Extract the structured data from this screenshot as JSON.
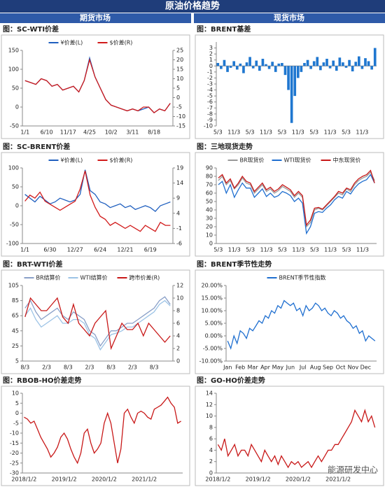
{
  "header": {
    "title": "原油价格趋势",
    "left": "期货市场",
    "right": "现货市场"
  },
  "watermark": "能源研发中心",
  "chart_data": [
    {
      "type": "line",
      "title": "图：SC-WTI价差",
      "categories": [
        "1/1",
        null,
        null,
        null,
        "6/10",
        null,
        null,
        null,
        "11/17",
        null,
        null,
        null,
        "4/25",
        null,
        null,
        null,
        "10/2",
        null,
        null,
        null,
        "3/11",
        null,
        null,
        null,
        "8/18",
        null,
        null,
        null
      ],
      "series": [
        {
          "name": "¥价差(L)",
          "color": "#1f5fbf",
          "values": [
            70,
            65,
            60,
            75,
            70,
            55,
            60,
            45,
            50,
            55,
            40,
            70,
            130,
            80,
            50,
            20,
            5,
            0,
            -5,
            -10,
            -5,
            -10,
            -5,
            0,
            -15,
            -5,
            -10,
            10
          ]
        },
        {
          "name": "$价差(R)",
          "color": "#d11a1a",
          "axis": "y2",
          "values": [
            9,
            8,
            7,
            10,
            9,
            6,
            7,
            4,
            5,
            6,
            3,
            9,
            20,
            11,
            5,
            -1,
            -4,
            -5,
            -6,
            -7,
            -6,
            -7,
            -5,
            -5,
            -8,
            -6,
            -7,
            -3
          ]
        }
      ],
      "ylim": [
        -50,
        150
      ],
      "yticks": [
        -50,
        0,
        50,
        100,
        150
      ],
      "y2lim": [
        -15,
        25
      ],
      "y2ticks": [
        -15,
        -10,
        -5,
        0,
        5,
        10,
        15,
        20,
        25
      ]
    },
    {
      "type": "bar",
      "title": "图：BRENT基差",
      "color": "#1f77d0",
      "categories": [
        "5/3",
        null,
        null,
        null,
        null,
        "11/3",
        null,
        null,
        null,
        null,
        "5/3",
        null,
        null,
        null,
        null,
        "11/3",
        null,
        null,
        null,
        null,
        "5/3",
        null,
        null,
        null,
        null,
        "11/3",
        null,
        null,
        null,
        null,
        "5/3",
        null,
        null,
        null,
        null,
        "11/3",
        null,
        null,
        null,
        null,
        "5/3",
        null,
        null,
        null,
        null,
        "11/3",
        null,
        null,
        null,
        null
      ],
      "values": [
        0.5,
        -0.5,
        1,
        -1,
        -0.3,
        0.8,
        -0.6,
        0.4,
        -1.2,
        0.6,
        1.5,
        -0.4,
        0.9,
        -0.8,
        1.2,
        0.3,
        -0.5,
        0.7,
        -1,
        0.4,
        0.5,
        -1.5,
        -4,
        -9.5,
        -5,
        -2,
        -1,
        0.5,
        1,
        -0.5,
        0.8,
        1.5,
        -0.7,
        0.6,
        1.2,
        -0.4,
        0.9,
        -0.8,
        1.4,
        0.6,
        -0.3,
        1,
        -0.9,
        0.7,
        1.6,
        -0.5,
        1.3,
        0.8,
        -0.6,
        3
      ],
      "ylim": [
        -10,
        4
      ],
      "yticks": [
        -10,
        -9,
        -8,
        -7,
        -6,
        -5,
        -4,
        -3,
        -2,
        -1,
        0,
        1,
        2,
        3
      ]
    },
    {
      "type": "line",
      "title": "图：SC-BRENT价差",
      "categories": [
        "1/1",
        null,
        null,
        null,
        null,
        "6/30",
        null,
        null,
        null,
        null,
        "12/27",
        null,
        null,
        null,
        null,
        "6/24",
        null,
        null,
        null,
        null,
        "12/21",
        null,
        null,
        null,
        null,
        "6/19",
        null,
        null,
        null,
        null
      ],
      "series": [
        {
          "name": "¥价差(L)",
          "color": "#1f5fbf",
          "values": [
            30,
            20,
            10,
            25,
            15,
            5,
            10,
            20,
            15,
            10,
            15,
            30,
            95,
            40,
            30,
            10,
            5,
            -5,
            0,
            5,
            -5,
            0,
            -10,
            -5,
            0,
            -5,
            -15,
            0,
            5,
            10
          ]
        },
        {
          "name": "$价差(R)",
          "color": "#d11a1a",
          "axis": "y2",
          "values": [
            8,
            10,
            9,
            11,
            8,
            7,
            6,
            5,
            6,
            7,
            8,
            12,
            18,
            10,
            6,
            3,
            2,
            0,
            1,
            0,
            -1,
            0,
            -1,
            -2,
            0,
            -1,
            -2,
            1,
            0,
            0
          ]
        }
      ],
      "ylim": [
        -100,
        100
      ],
      "yticks": [
        -100,
        -50,
        0,
        50,
        100
      ],
      "y2lim": [
        -6,
        19
      ],
      "y2ticks": [
        -6,
        -1,
        4,
        9,
        14,
        19
      ]
    },
    {
      "type": "line",
      "title": "图：三地现货走势",
      "categories": [
        "5/3",
        null,
        null,
        null,
        "11/3",
        null,
        null,
        null,
        "5/3",
        null,
        null,
        null,
        "11/3",
        null,
        null,
        null,
        "5/3",
        null,
        null,
        null,
        "11/3",
        null,
        null,
        null,
        "5/3",
        null,
        null,
        null,
        "11/3",
        null,
        null,
        null,
        "5/3",
        null,
        null,
        null,
        "11/3",
        null,
        null,
        null
      ],
      "series": [
        {
          "name": "BR现货价",
          "color": "#999999",
          "values": [
            75,
            80,
            70,
            75,
            65,
            70,
            78,
            72,
            70,
            60,
            65,
            70,
            62,
            65,
            60,
            63,
            68,
            65,
            62,
            55,
            60,
            55,
            20,
            25,
            40,
            42,
            40,
            45,
            50,
            55,
            60,
            58,
            65,
            62,
            70,
            75,
            78,
            80,
            85,
            75
          ]
        },
        {
          "name": "WTI现货价",
          "color": "#1f6fd0",
          "values": [
            70,
            74,
            60,
            70,
            55,
            64,
            72,
            66,
            66,
            55,
            60,
            65,
            56,
            60,
            55,
            57,
            62,
            60,
            57,
            50,
            54,
            48,
            12,
            20,
            36,
            38,
            37,
            42,
            46,
            52,
            56,
            54,
            62,
            59,
            66,
            71,
            74,
            76,
            82,
            72
          ]
        },
        {
          "name": "中东现货价",
          "color": "#c81818",
          "values": [
            78,
            82,
            72,
            77,
            66,
            72,
            80,
            74,
            72,
            62,
            67,
            72,
            64,
            67,
            62,
            65,
            70,
            67,
            64,
            57,
            62,
            57,
            22,
            28,
            42,
            43,
            41,
            46,
            51,
            56,
            62,
            60,
            66,
            64,
            72,
            77,
            80,
            82,
            87,
            72
          ]
        }
      ],
      "ylim": [
        0,
        90
      ],
      "yticks": [
        0,
        10,
        20,
        30,
        40,
        50,
        60,
        70,
        80,
        90
      ]
    },
    {
      "type": "line",
      "title": "图：BRT-WTI价差",
      "categories": [
        "8/3",
        null,
        null,
        null,
        "2/3",
        null,
        null,
        null,
        "8/3",
        null,
        null,
        null,
        "2/3",
        null,
        null,
        null,
        "8/3",
        null,
        null,
        null,
        "2/3",
        null,
        null,
        null,
        "8/3",
        null,
        null,
        null
      ],
      "series": [
        {
          "name": "BR结算价",
          "color": "#8aa0c8",
          "values": [
            75,
            85,
            70,
            60,
            65,
            70,
            75,
            65,
            60,
            70,
            65,
            60,
            45,
            40,
            25,
            35,
            45,
            45,
            50,
            55,
            55,
            60,
            65,
            70,
            75,
            85,
            90,
            80
          ]
        },
        {
          "name": "WTI结算价",
          "color": "#9cc3e6",
          "values": [
            65,
            75,
            60,
            50,
            55,
            60,
            65,
            55,
            55,
            60,
            60,
            55,
            40,
            35,
            20,
            30,
            40,
            42,
            45,
            50,
            50,
            55,
            60,
            65,
            70,
            80,
            85,
            78
          ]
        },
        {
          "name": "跨市价差(R)",
          "color": "#c81818",
          "axis": "y2",
          "values": [
            7,
            10,
            9,
            8,
            8,
            9,
            10,
            7,
            6,
            9,
            6,
            5,
            4,
            6,
            7,
            8,
            2,
            4,
            6,
            5,
            5,
            6,
            4,
            6,
            5,
            4,
            3,
            4
          ]
        }
      ],
      "ylim": [
        5,
        105
      ],
      "yticks": [
        5,
        25,
        45,
        65,
        85,
        105
      ],
      "y2lim": [
        0,
        12
      ],
      "y2ticks": [
        0,
        2,
        4,
        6,
        8,
        10,
        12
      ]
    },
    {
      "type": "line",
      "title": "图：BRENT季节性走势",
      "categories": [
        "Jan",
        null,
        null,
        null,
        "Feb",
        null,
        null,
        null,
        "Mar",
        null,
        null,
        null,
        "Apr",
        null,
        null,
        null,
        "May",
        null,
        null,
        null,
        "Jun",
        null,
        null,
        null,
        "Jul",
        null,
        null,
        null,
        "Aug",
        null,
        null,
        null,
        "Sep",
        null,
        null,
        null,
        "Oct",
        null,
        null,
        null,
        "Nov",
        null,
        null,
        null,
        "Dec",
        null,
        null,
        null
      ],
      "series": [
        {
          "name": "BRENT季节性指数",
          "color": "#1f6fd0",
          "values": [
            -2,
            -5,
            0,
            -3,
            2,
            1,
            -1,
            3,
            2,
            4,
            6,
            5,
            8,
            7,
            10,
            9,
            12,
            11,
            14,
            13,
            12,
            13,
            10,
            11,
            8,
            12,
            10,
            11,
            13,
            12,
            10,
            11,
            9,
            8,
            10,
            9,
            7,
            8,
            6,
            5,
            3,
            4,
            1,
            2,
            -2,
            0,
            -1,
            -2
          ]
        }
      ],
      "ylim": [
        -10,
        20
      ],
      "yticks": [
        {
          "value": -10,
          "label": "-10.00%"
        },
        {
          "value": -5,
          "label": "-5.00%"
        },
        {
          "value": 0,
          "label": "0.00%"
        },
        {
          "value": 5,
          "label": "5.00%"
        },
        {
          "value": 10,
          "label": "10.00%"
        },
        {
          "value": 15,
          "label": "15.00%"
        },
        {
          "value": 20,
          "label": "20.00%"
        }
      ]
    },
    {
      "type": "line",
      "title": "图：RBOB-HO价差走势",
      "color": "#c81818",
      "categories": [
        "2018/1/2",
        null,
        null,
        null,
        null,
        null,
        null,
        null,
        null,
        null,
        null,
        null,
        "2019/1/2",
        null,
        null,
        null,
        null,
        null,
        null,
        null,
        null,
        null,
        null,
        null,
        "2020/1/2",
        null,
        null,
        null,
        null,
        null,
        null,
        null,
        null,
        null,
        null,
        null,
        "2021/1/2",
        null,
        null,
        null,
        null,
        null,
        null,
        null,
        null,
        null,
        null,
        null
      ],
      "values": [
        -2,
        -3,
        -5,
        -4,
        -8,
        -12,
        -15,
        -18,
        -22,
        -20,
        -17,
        -12,
        -10,
        -13,
        -18,
        -22,
        -25,
        -20,
        -10,
        -8,
        -15,
        -20,
        -18,
        -15,
        -5,
        0,
        -5,
        -15,
        -25,
        -18,
        0,
        2,
        -2,
        -5,
        0,
        1,
        0,
        -2,
        -3,
        2,
        3,
        4,
        6,
        8,
        5,
        3,
        -5,
        -4
      ],
      "ylim": [
        -30,
        10
      ],
      "yticks": [
        -30,
        -25,
        -20,
        -15,
        -10,
        -5,
        0,
        5,
        10
      ]
    },
    {
      "type": "line",
      "title": "图：GO-HO价差走势",
      "color": "#c81818",
      "categories": [
        "2018/1/2",
        null,
        null,
        null,
        null,
        null,
        null,
        null,
        null,
        null,
        null,
        null,
        "2019/1/2",
        null,
        null,
        null,
        null,
        null,
        null,
        null,
        null,
        null,
        null,
        null,
        "2020/1/2",
        null,
        null,
        null,
        null,
        null,
        null,
        null,
        null,
        null,
        null,
        null,
        "2021/1/2",
        null,
        null,
        null,
        null,
        null,
        null,
        null,
        null,
        null,
        null,
        null
      ],
      "values": [
        5,
        4,
        6,
        3,
        4,
        5,
        3,
        4,
        4,
        3,
        5,
        4,
        3,
        2,
        4,
        3,
        2,
        3,
        1.5,
        3,
        2,
        1,
        2,
        1.5,
        2,
        1,
        1.5,
        2,
        1,
        2,
        3,
        2,
        3,
        4,
        4,
        5,
        5,
        6,
        7,
        8,
        9,
        11,
        10,
        9,
        11,
        9,
        10,
        8
      ],
      "ylim": [
        0,
        14
      ],
      "yticks": [
        0,
        2,
        4,
        6,
        8,
        10,
        12,
        14
      ]
    }
  ]
}
